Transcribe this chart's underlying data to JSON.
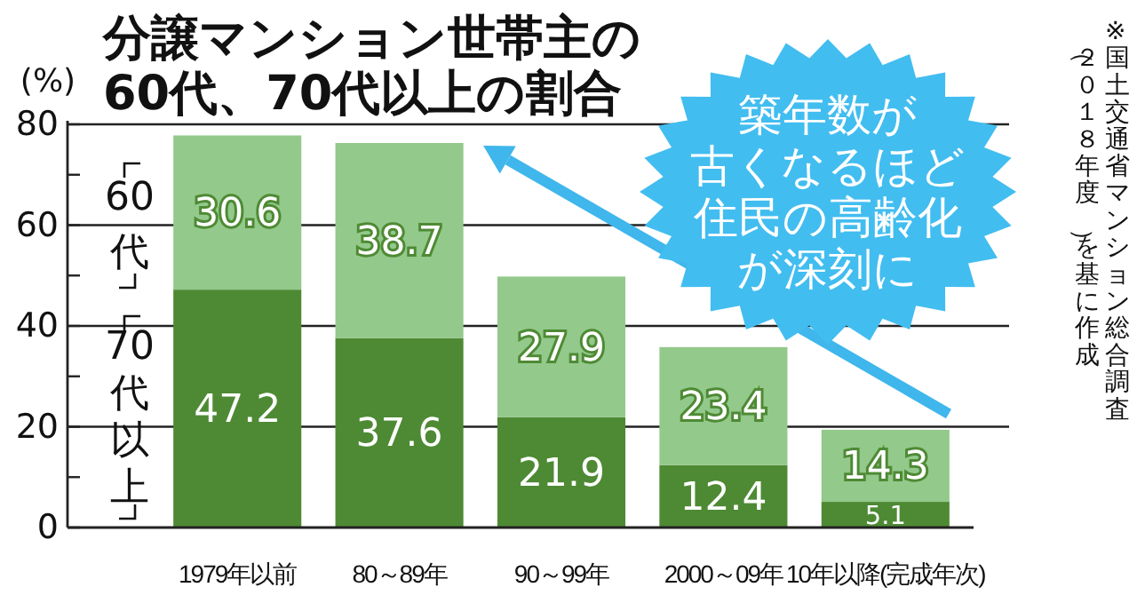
{
  "chart_data": {
    "type": "bar",
    "title": "分譲マンション世帯主の\n60代、70代以上の割合",
    "ylabel": "(%)",
    "categories": [
      "1979年以前",
      "80～89年",
      "90～99年",
      "2000～09年",
      "10年以降(完成年次)"
    ],
    "stacked": true,
    "series": [
      {
        "name": "70代以上",
        "color": "#4e8a34",
        "values": [
          47.2,
          37.6,
          21.9,
          12.4,
          5.1
        ]
      },
      {
        "name": "60代",
        "color": "#93c98b",
        "values": [
          30.6,
          38.7,
          27.9,
          23.4,
          14.3
        ]
      }
    ],
    "ylim": [
      0,
      80
    ],
    "yticks": [
      0,
      {
        "value": 10,
        "label": null
      },
      20,
      {
        "value": 30,
        "label": null
      },
      40,
      {
        "value": 50,
        "label": null
      },
      60,
      {
        "value": 70,
        "label": null
      },
      80
    ],
    "grid": "y",
    "data_labels": true,
    "annotations": [
      "築年数が古くなるほど住民の高齢化が深刻に",
      "※国土交通省マンション総合調査（２０１８年度）を基に作成"
    ]
  }
}
